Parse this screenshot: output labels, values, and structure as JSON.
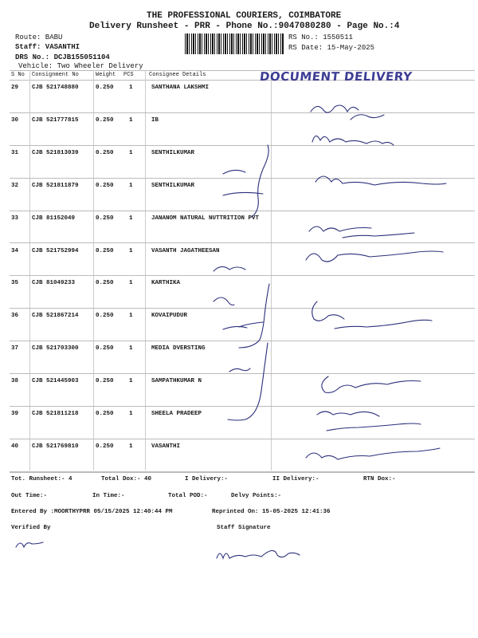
{
  "header": {
    "company": "THE PROFESSIONAL COURIERS, COIMBATORE",
    "subtitle": "Delivery Runsheet - PRR - Phone No.:9047080280 - Page No.:4",
    "route": "Route: BABU",
    "staff": "Staff: VASANTHI",
    "drs_no": "DRS No.: DCJB155051104",
    "vehicle": "Vehicle: Two Wheeler Delivery",
    "rs_no": "RS No.: 1550511",
    "rs_date": "RS Date: 15-May-2025"
  },
  "stamp": "DOCUMENT DELIVERY",
  "table": {
    "columns": [
      "S No",
      "Consignment No",
      "Weight",
      "PCS",
      "Consignee Details"
    ],
    "rows": [
      {
        "sno": "29",
        "consignment": "CJB 521748880",
        "weight": "0.250",
        "pcs": "1",
        "consignee": "SANTHANA LAKSHMI"
      },
      {
        "sno": "30",
        "consignment": "CJB 521777815",
        "weight": "0.250",
        "pcs": "1",
        "consignee": "IB"
      },
      {
        "sno": "31",
        "consignment": "CJB 521813039",
        "weight": "0.250",
        "pcs": "1",
        "consignee": "SENTHILKUMAR"
      },
      {
        "sno": "32",
        "consignment": "CJB 521811879",
        "weight": "0.250",
        "pcs": "1",
        "consignee": "SENTHILKUMAR"
      },
      {
        "sno": "33",
        "consignment": "CJB 81152049",
        "weight": "0.250",
        "pcs": "1",
        "consignee": "JANANOM NATURAL NUTTRITION PVT"
      },
      {
        "sno": "34",
        "consignment": "CJB 521752994",
        "weight": "0.250",
        "pcs": "1",
        "consignee": "VASANTH JAGATHEESAN"
      },
      {
        "sno": "35",
        "consignment": "CJB 81049233",
        "weight": "0.250",
        "pcs": "1",
        "consignee": "KARTHIKA"
      },
      {
        "sno": "36",
        "consignment": "CJB 521867214",
        "weight": "0.250",
        "pcs": "1",
        "consignee": "KOVAIPUDUR"
      },
      {
        "sno": "37",
        "consignment": "CJB 521703300",
        "weight": "0.250",
        "pcs": "1",
        "consignee": "MEDIA DVERSTING"
      },
      {
        "sno": "38",
        "consignment": "CJB 521445903",
        "weight": "0.250",
        "pcs": "1",
        "consignee": "SAMPATHKUMAR N"
      },
      {
        "sno": "39",
        "consignment": "CJB 521811218",
        "weight": "0.250",
        "pcs": "1",
        "consignee": "SHEELA PRADEEP"
      },
      {
        "sno": "40",
        "consignment": "CJB 521769810",
        "weight": "0.250",
        "pcs": "1",
        "consignee": "VASANTHI"
      }
    ]
  },
  "footer": {
    "tot_runsheet": "Tot. Runsheet:- 4",
    "total_dox": "Total Dox:-   40",
    "i_delivery": "I Delivery:-",
    "ii_delivery": "II Delivery:-",
    "rtn_dox": "RTN Dox:-",
    "out_time": "Out Time:-",
    "in_time": "In Time:-",
    "total_pod": "Total POD:-",
    "delvy_points": "Delvy Points:-",
    "entered_by": "Entered By :MOORTHYPRR 05/15/2025 12:40:44 PM",
    "reprinted_on": "Reprinted On: 15-05-2025 12:41:36",
    "verified_by": "Verified By",
    "staff_signature": "Staff Signature"
  },
  "colors": {
    "ink": "#2b2f7a",
    "stamp": "#2a2a8a",
    "text": "#1a1a1a"
  }
}
